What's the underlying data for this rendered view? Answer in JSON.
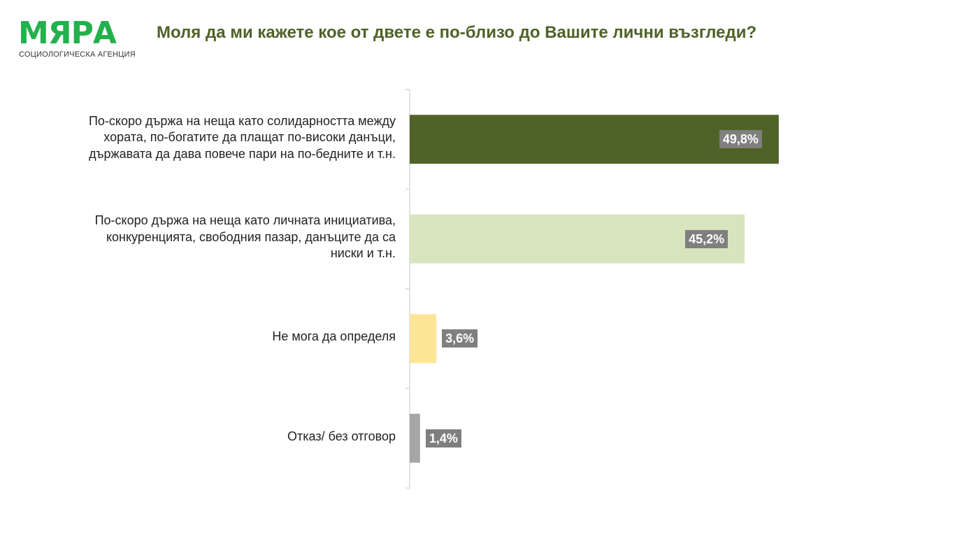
{
  "logo": {
    "word": "МЯРА",
    "subtitle": "СОЦИОЛОГИЧЕСКА АГЕНЦИЯ",
    "word_color": "#22b14c",
    "subtitle_color": "#333333"
  },
  "title": "Моля да ми кажете кое от двете е по-близо до Вашите лични възгледи?",
  "title_color": "#4f6228",
  "chart_data": {
    "type": "bar",
    "orientation": "horizontal",
    "categories": [
      "По-скоро държа на неща като солидарността между хората, по-богатите да плащат по-високи данъци, държавата да дава повече пари на по-бедните и т.н.",
      "По-скоро държа на неща като личната инициатива, конкуренцията, свободния пазар, данъците да са ниски и т.н.",
      "Не мога да определя",
      "Отказ/ без отговор"
    ],
    "values": [
      49.8,
      45.2,
      3.6,
      1.4
    ],
    "data_labels": [
      "49,8%",
      "45,2%",
      "3,6%",
      "1,4%"
    ],
    "colors": [
      "#4f6228",
      "#d7e4bd",
      "#fde597",
      "#a6a6a6"
    ],
    "label_box_color": "#7f7f7f",
    "xlim": [
      0,
      55
    ],
    "grid": false,
    "legend": "none",
    "category_axis_color": "#d9d9d9"
  }
}
